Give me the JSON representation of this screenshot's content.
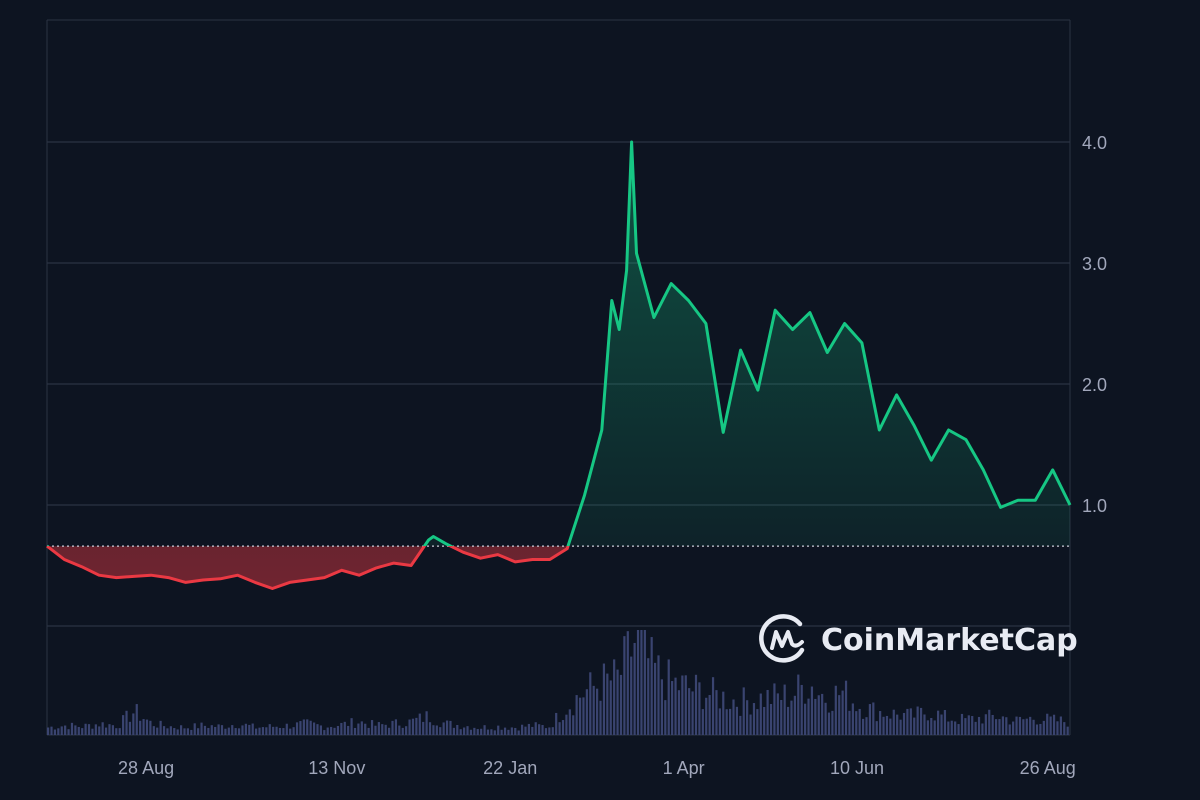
{
  "chart_data": {
    "type": "line",
    "title": "",
    "xlabel": "",
    "ylabel": "",
    "x_tick_labels": [
      "28 Aug",
      "13 Nov",
      "22 Jan",
      "1 Apr",
      "10 Jun",
      "26 Aug"
    ],
    "x_tick_dates": [
      "2023-08-28",
      "2023-11-13",
      "2024-01-22",
      "2024-04-01",
      "2024-06-10",
      "2024-08-26"
    ],
    "y_tick_labels": [
      "1.0",
      "2.0",
      "3.0",
      "4.0"
    ],
    "y_ticks": [
      1,
      2,
      3,
      4
    ],
    "ylim": [
      0,
      5.0
    ],
    "xlim": [
      "2023-07-19",
      "2024-09-04"
    ],
    "grid": true,
    "y_axis_side": "right",
    "baseline_value": 0.66,
    "colors": {
      "above": "#16c784",
      "below": "#ea3943",
      "grid": "#2b3344",
      "volume": "#3a4470",
      "background": "#0d1421"
    },
    "watermark": "CoinMarketCap",
    "series": [
      {
        "points": [
          [
            "2023-07-19",
            0.66
          ],
          [
            "2023-07-26",
            0.55
          ],
          [
            "2023-08-02",
            0.49
          ],
          [
            "2023-08-09",
            0.42
          ],
          [
            "2023-08-16",
            0.4
          ],
          [
            "2023-08-23",
            0.41
          ],
          [
            "2023-08-30",
            0.42
          ],
          [
            "2023-09-06",
            0.4
          ],
          [
            "2023-09-13",
            0.36
          ],
          [
            "2023-09-20",
            0.38
          ],
          [
            "2023-09-27",
            0.39
          ],
          [
            "2023-10-04",
            0.42
          ],
          [
            "2023-10-11",
            0.36
          ],
          [
            "2023-10-18",
            0.31
          ],
          [
            "2023-10-25",
            0.36
          ],
          [
            "2023-11-01",
            0.38
          ],
          [
            "2023-11-08",
            0.4
          ],
          [
            "2023-11-15",
            0.46
          ],
          [
            "2023-11-22",
            0.42
          ],
          [
            "2023-11-29",
            0.48
          ],
          [
            "2023-12-06",
            0.52
          ],
          [
            "2023-12-13",
            0.5
          ],
          [
            "2023-12-20",
            0.71
          ],
          [
            "2023-12-22",
            0.74
          ],
          [
            "2023-12-27",
            0.68
          ],
          [
            "2024-01-03",
            0.61
          ],
          [
            "2024-01-10",
            0.56
          ],
          [
            "2024-01-17",
            0.59
          ],
          [
            "2024-01-24",
            0.53
          ],
          [
            "2024-01-31",
            0.55
          ],
          [
            "2024-02-07",
            0.55
          ],
          [
            "2024-02-14",
            0.64
          ],
          [
            "2024-02-21",
            1.08
          ],
          [
            "2024-02-28",
            1.62
          ],
          [
            "2024-03-03",
            2.69
          ],
          [
            "2024-03-06",
            2.45
          ],
          [
            "2024-03-09",
            2.94
          ],
          [
            "2024-03-11",
            4.0
          ],
          [
            "2024-03-13",
            3.08
          ],
          [
            "2024-03-20",
            2.55
          ],
          [
            "2024-03-27",
            2.83
          ],
          [
            "2024-04-03",
            2.69
          ],
          [
            "2024-04-10",
            2.5
          ],
          [
            "2024-04-17",
            1.6
          ],
          [
            "2024-04-24",
            2.28
          ],
          [
            "2024-05-01",
            1.95
          ],
          [
            "2024-05-08",
            2.61
          ],
          [
            "2024-05-15",
            2.45
          ],
          [
            "2024-05-22",
            2.59
          ],
          [
            "2024-05-29",
            2.26
          ],
          [
            "2024-06-05",
            2.5
          ],
          [
            "2024-06-12",
            2.34
          ],
          [
            "2024-06-19",
            1.62
          ],
          [
            "2024-06-26",
            1.91
          ],
          [
            "2024-07-03",
            1.66
          ],
          [
            "2024-07-10",
            1.37
          ],
          [
            "2024-07-17",
            1.62
          ],
          [
            "2024-07-24",
            1.54
          ],
          [
            "2024-07-31",
            1.29
          ],
          [
            "2024-08-07",
            0.98
          ],
          [
            "2024-08-14",
            1.04
          ],
          [
            "2024-08-21",
            1.04
          ],
          [
            "2024-08-28",
            1.29
          ],
          [
            "2024-09-04",
            1.0
          ]
        ]
      }
    ],
    "volume_relative": [
      8,
      10,
      9,
      12,
      10,
      25,
      12,
      9,
      8,
      10,
      9,
      12,
      8,
      9,
      10,
      12,
      9,
      11,
      14,
      10,
      12,
      14,
      20,
      12,
      10,
      8,
      9,
      8,
      10,
      9,
      30,
      45,
      55,
      60,
      100,
      70,
      55,
      50,
      45,
      40,
      35,
      38,
      40,
      42,
      55,
      40,
      45,
      30,
      25,
      22,
      20,
      25,
      18,
      16,
      18,
      20,
      15,
      18,
      16,
      14
    ]
  }
}
